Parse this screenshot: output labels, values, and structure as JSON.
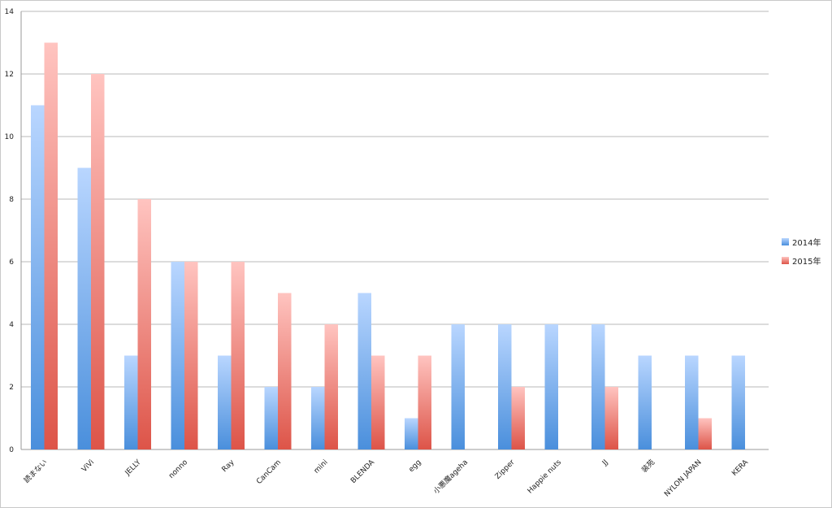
{
  "chart_data": {
    "type": "bar",
    "categories": [
      "読まない",
      "ViVi",
      "JELLY",
      "nonno",
      "Ray",
      "CanCam",
      "mini",
      "BLENDA",
      "egg",
      "小悪魔ageha",
      "Zipper",
      "Happie nuts",
      "JJ",
      "装苑",
      "NYLON JAPAN",
      "KERA"
    ],
    "series": [
      {
        "name": "2014年",
        "values": [
          11,
          9,
          3,
          6,
          3,
          2,
          2,
          5,
          1,
          4,
          4,
          4,
          4,
          3,
          3,
          3
        ],
        "color_top": "#b9d6ff",
        "color_bottom": "#4a8fdc"
      },
      {
        "name": "2015年",
        "values": [
          13,
          12,
          8,
          6,
          6,
          5,
          4,
          3,
          3,
          0,
          2,
          0,
          2,
          0,
          1,
          0
        ],
        "color_top": "#ffc4c0",
        "color_bottom": "#dd5448"
      }
    ],
    "yticks": [
      "0",
      "2",
      "4",
      "6",
      "8",
      "10",
      "12",
      "14"
    ],
    "ylim": [
      0,
      14
    ],
    "grid": true,
    "legend_position": "right",
    "xlabel": "",
    "ylabel": "",
    "title": ""
  }
}
